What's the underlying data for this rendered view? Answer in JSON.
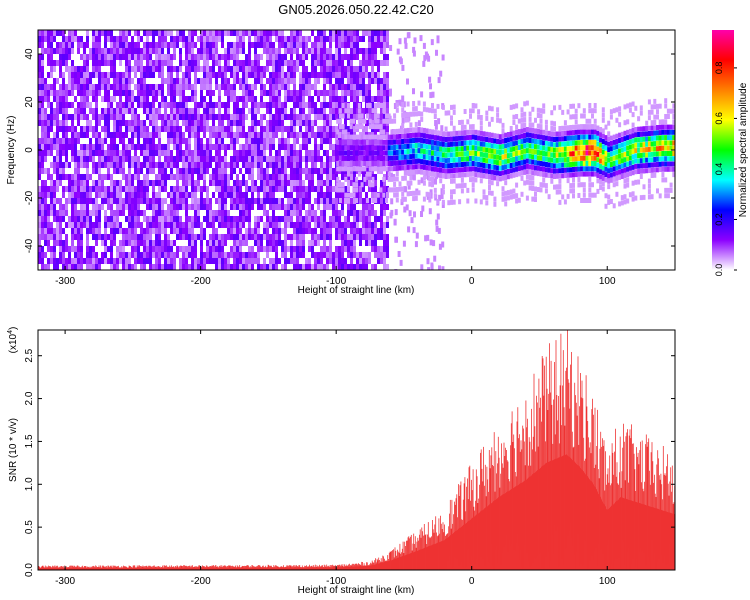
{
  "title": "GN05.2026.050.22.42.C20",
  "chart_data": [
    {
      "type": "heatmap",
      "xlabel": "Height of straight line (km)",
      "ylabel": "Frequency (Hz)",
      "xlim": [
        -320,
        150
      ],
      "ylim": [
        -50,
        50
      ],
      "xticks": [
        -300,
        -200,
        -100,
        0,
        100
      ],
      "yticks": [
        -40,
        -20,
        0,
        20,
        40
      ],
      "noise_region_x": [
        -320,
        -62
      ],
      "signal_band": [
        {
          "x": -60,
          "f": 0,
          "amp": 0.3
        },
        {
          "x": -40,
          "f": 1,
          "amp": 0.4
        },
        {
          "x": -20,
          "f": -1,
          "amp": 0.45
        },
        {
          "x": 0,
          "f": 0,
          "amp": 0.5
        },
        {
          "x": 20,
          "f": -2,
          "amp": 0.6
        },
        {
          "x": 40,
          "f": 1,
          "amp": 0.5
        },
        {
          "x": 60,
          "f": -1,
          "amp": 0.55
        },
        {
          "x": 80,
          "f": 0,
          "amp": 0.9
        },
        {
          "x": 90,
          "f": 0,
          "amp": 0.95
        },
        {
          "x": 100,
          "f": -3,
          "amp": 0.5
        },
        {
          "x": 120,
          "f": 1,
          "amp": 0.6
        },
        {
          "x": 140,
          "f": 2,
          "amp": 0.7
        }
      ],
      "colorbar": {
        "label": "Normalized spectral amplitude",
        "range": [
          0.0,
          0.95
        ],
        "ticks": [
          "0.0",
          "0.2",
          "0.4",
          "0.6",
          "0.8"
        ],
        "colors": [
          "#ffffff",
          "#8c00ff",
          "#0000ff",
          "#00ffff",
          "#00ff00",
          "#ffff00",
          "#ff8000",
          "#ff0000",
          "#ff00aa"
        ]
      }
    },
    {
      "type": "area",
      "xlabel": "Height of straight line (km)",
      "ylabel": "SNR (10 * v/v)",
      "multiplier": "(x10",
      "multiplier_exp": "4",
      "multiplier_close": ")",
      "xlim": [
        -320,
        150
      ],
      "ylim": [
        0,
        2.8
      ],
      "xticks": [
        -300,
        -200,
        -100,
        0,
        100
      ],
      "yticks": [
        "0.0",
        "0.5",
        "1.0",
        "1.5",
        "2.0",
        "2.5"
      ],
      "color": "#ee3333",
      "envelope": [
        {
          "x": -320,
          "y": 0.05
        },
        {
          "x": -100,
          "y": 0.06
        },
        {
          "x": -75,
          "y": 0.1
        },
        {
          "x": -60,
          "y": 0.22
        },
        {
          "x": -40,
          "y": 0.45
        },
        {
          "x": -20,
          "y": 0.7
        },
        {
          "x": 0,
          "y": 1.2
        },
        {
          "x": 20,
          "y": 1.7
        },
        {
          "x": 40,
          "y": 2.1
        },
        {
          "x": 55,
          "y": 2.5
        },
        {
          "x": 70,
          "y": 2.7
        },
        {
          "x": 80,
          "y": 2.4
        },
        {
          "x": 90,
          "y": 2.0
        },
        {
          "x": 100,
          "y": 1.4
        },
        {
          "x": 110,
          "y": 1.7
        },
        {
          "x": 130,
          "y": 1.5
        },
        {
          "x": 150,
          "y": 1.3
        }
      ]
    }
  ]
}
